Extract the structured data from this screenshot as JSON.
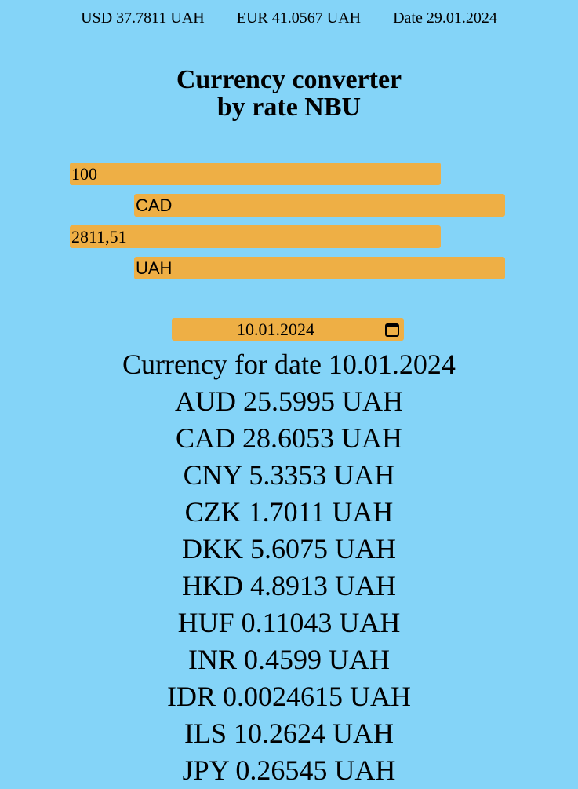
{
  "header": {
    "usd": "USD 37.7811 UAH",
    "eur": "EUR 41.0567 UAH",
    "date": "Date 29.01.2024"
  },
  "title": {
    "line1": "Currency converter",
    "line2": "by rate NBU"
  },
  "converter": {
    "amount": "100",
    "from_currency": "CAD",
    "result": "2811,51",
    "to_currency": "UAH"
  },
  "date_picker": {
    "value": "10.01.2024"
  },
  "rates": {
    "heading": "Currency for date 10.01.2024",
    "items": [
      "AUD 25.5995 UAH",
      "CAD 28.6053 UAH",
      "CNY 5.3353 UAH",
      "CZK 1.7011 UAH",
      "DKK 5.6075 UAH",
      "HKD 4.8913 UAH",
      "HUF 0.11043 UAH",
      "INR 0.4599 UAH",
      "IDR 0.0024615 UAH",
      "ILS 10.2624 UAH",
      "JPY 0.26545 UAH"
    ]
  },
  "colors": {
    "background": "#84d4f8",
    "field": "#eeaf45"
  },
  "icons": {
    "calendar": "calendar-icon"
  }
}
